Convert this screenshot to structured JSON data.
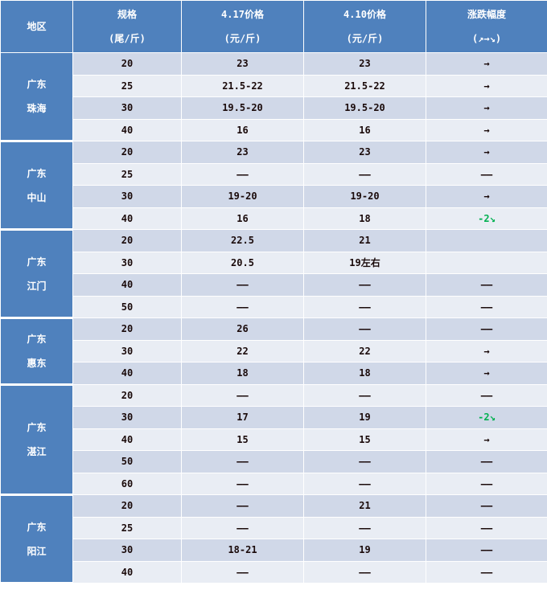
{
  "header": {
    "region": "地区",
    "spec": [
      "规格",
      "(尾/斤)"
    ],
    "price_now": [
      "4.17价格",
      "(元/斤)"
    ],
    "price_prev": [
      "4.10价格",
      "(元/斤)"
    ],
    "change": [
      "涨跌幅度",
      "(↗→↘)"
    ]
  },
  "colors": {
    "header": "#4f81bd",
    "row_dark": "#d0d8e8",
    "row_light": "#e9edf4",
    "down": "#00b050"
  },
  "groups": [
    {
      "region": [
        "广东",
        "珠海"
      ],
      "rows": [
        [
          "20",
          "23",
          "23",
          "→"
        ],
        [
          "25",
          "21.5-22",
          "21.5-22",
          "→"
        ],
        [
          "30",
          "19.5-20",
          "19.5-20",
          "→"
        ],
        [
          "40",
          "16",
          "16",
          "→"
        ]
      ]
    },
    {
      "region": [
        "广东",
        "中山"
      ],
      "rows": [
        [
          "20",
          "23",
          "23",
          "→"
        ],
        [
          "25",
          "——",
          "——",
          "——"
        ],
        [
          "30",
          "19-20",
          "19-20",
          "→"
        ],
        [
          "40",
          "16",
          "18",
          "-2↘"
        ]
      ]
    },
    {
      "region": [
        "广东",
        "江门"
      ],
      "rows": [
        [
          "20",
          "22.5",
          "21",
          ""
        ],
        [
          "30",
          "20.5",
          "19左右",
          ""
        ],
        [
          "40",
          "——",
          "——",
          "——"
        ],
        [
          "50",
          "——",
          "——",
          "——"
        ]
      ]
    },
    {
      "region": [
        "广东",
        "惠东"
      ],
      "rows": [
        [
          "20",
          "26",
          "——",
          "——"
        ],
        [
          "30",
          "22",
          "22",
          "→"
        ],
        [
          "40",
          "18",
          "18",
          "→"
        ]
      ]
    },
    {
      "region": [
        "广东",
        "湛江"
      ],
      "rows": [
        [
          "20",
          "——",
          "——",
          "——"
        ],
        [
          "30",
          "17",
          "19",
          "-2↘"
        ],
        [
          "40",
          "15",
          "15",
          "→"
        ],
        [
          "50",
          "——",
          "——",
          "——"
        ],
        [
          "60",
          "——",
          "——",
          "——"
        ]
      ]
    },
    {
      "region": [
        "广东",
        "阳江"
      ],
      "rows": [
        [
          "20",
          "——",
          "21",
          "——"
        ],
        [
          "25",
          "——",
          "——",
          "——"
        ],
        [
          "30",
          "18-21",
          "19",
          "——"
        ],
        [
          "40",
          "——",
          "——",
          "——"
        ]
      ]
    }
  ]
}
